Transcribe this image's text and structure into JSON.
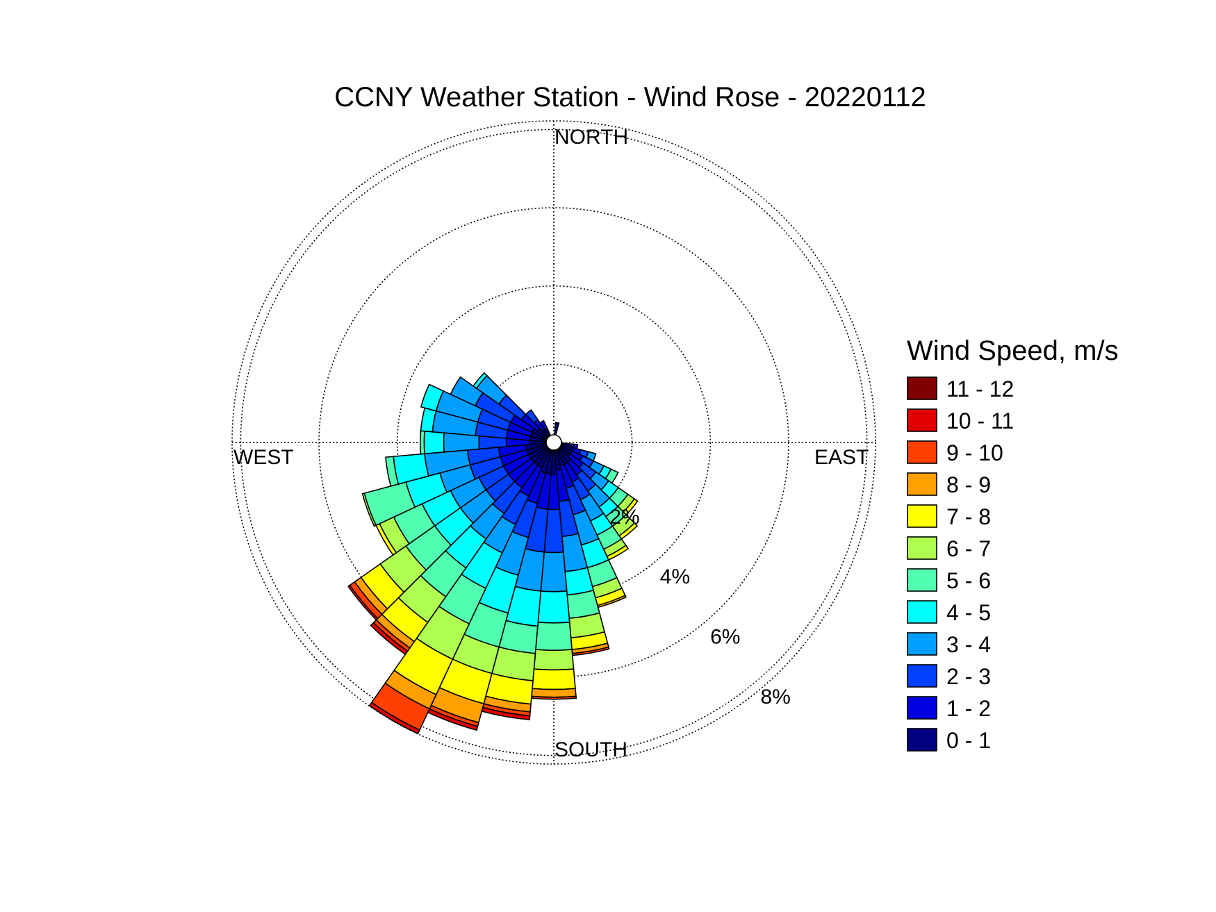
{
  "chart_data": {
    "type": "wind-rose",
    "title": "CCNY Weather Station - Wind Rose - 20220112",
    "direction_labels": {
      "north": "NORTH",
      "east": "EAST",
      "south": "SOUTH",
      "west": "WEST"
    },
    "ring_labels": [
      "2%",
      "4%",
      "6%",
      "8%"
    ],
    "ring_values": [
      2,
      4,
      6,
      8
    ],
    "ring_max": 8.22,
    "grid": true,
    "direction_bin_width_deg": 10,
    "legend": {
      "title": "Wind Speed, m/s",
      "placement": "right",
      "bins": [
        {
          "label": "11 - 12",
          "color": "#800000"
        },
        {
          "label": "10 - 11",
          "color": "#e00000"
        },
        {
          "label": "9 - 10",
          "color": "#ff4000"
        },
        {
          "label": "8 - 9",
          "color": "#ff9f00"
        },
        {
          "label": "7 - 8",
          "color": "#ffff00"
        },
        {
          "label": "6 - 7",
          "color": "#afff50"
        },
        {
          "label": "5 - 6",
          "color": "#50ffaf"
        },
        {
          "label": "4 - 5",
          "color": "#00ffff"
        },
        {
          "label": "3 - 4",
          "color": "#009fff"
        },
        {
          "label": "2 - 3",
          "color": "#0040ff"
        },
        {
          "label": "1 - 2",
          "color": "#0000e0"
        },
        {
          "label": "0 - 1",
          "color": "#000080"
        }
      ]
    },
    "speed_bins_low_to_high": [
      "0 - 1",
      "1 - 2",
      "2 - 3",
      "3 - 4",
      "4 - 5",
      "5 - 6",
      "6 - 7",
      "7 - 8",
      "8 - 9",
      "9 - 10",
      "10 - 11",
      "11 - 12"
    ],
    "series_note": "cumulative frequency (%) at the outer edge of each speed bin, low to high",
    "directions": [
      {
        "dir": 10,
        "cum": [
          0.3
        ]
      },
      {
        "dir": 100,
        "cum": [
          0.3,
          0.4
        ]
      },
      {
        "dir": 110,
        "cum": [
          0.3,
          0.5,
          0.7,
          0.9
        ]
      },
      {
        "dir": 120,
        "cum": [
          0.3,
          0.6,
          0.9,
          1.2,
          1.4,
          1.6
        ]
      },
      {
        "dir": 130,
        "cum": [
          0.3,
          0.7,
          1.1,
          1.5,
          1.8,
          2.1,
          2.3,
          2.4
        ]
      },
      {
        "dir": 140,
        "cum": [
          0.4,
          0.8,
          1.3,
          1.8,
          2.1,
          2.4,
          2.7,
          2.8
        ]
      },
      {
        "dir": 150,
        "cum": [
          0.4,
          0.9,
          1.4,
          2.0,
          2.4,
          2.8,
          3.0,
          3.1
        ]
      },
      {
        "dir": 160,
        "cum": [
          0.4,
          1.0,
          1.7,
          2.5,
          3.1,
          3.6,
          3.9,
          4.1,
          4.15
        ]
      },
      {
        "dir": 170,
        "cum": [
          0.5,
          1.3,
          2.2,
          3.1,
          3.7,
          4.3,
          4.8,
          5.1,
          5.2,
          5.25
        ]
      },
      {
        "dir": 180,
        "cum": [
          0.6,
          1.5,
          2.6,
          3.6,
          4.4,
          5.1,
          5.6,
          6.1,
          6.3,
          6.35
        ]
      },
      {
        "dir": 190,
        "cum": [
          0.6,
          1.5,
          2.6,
          3.6,
          4.5,
          5.2,
          5.9,
          6.5,
          6.7,
          6.8,
          6.9
        ]
      },
      {
        "dir": 200,
        "cum": [
          0.6,
          1.4,
          2.3,
          3.3,
          4.3,
          5.2,
          5.9,
          6.7,
          7.2,
          7.3,
          7.4
        ]
      },
      {
        "dir": 210,
        "cum": [
          0.5,
          1.3,
          2.1,
          2.9,
          3.9,
          4.9,
          5.9,
          6.9,
          7.3,
          7.9,
          8.0
        ]
      },
      {
        "dir": 220,
        "cum": [
          0.5,
          1.2,
          2.0,
          2.8,
          3.7,
          4.6,
          5.4,
          6.0,
          6.2,
          6.3,
          6.4
        ]
      },
      {
        "dir": 230,
        "cum": [
          0.5,
          1.2,
          1.9,
          2.7,
          3.5,
          4.4,
          5.2,
          5.8,
          6.0,
          6.15,
          6.2
        ]
      },
      {
        "dir": 240,
        "cum": [
          0.5,
          1.2,
          1.9,
          2.7,
          3.5,
          4.3,
          4.7,
          4.8
        ]
      },
      {
        "dir": 250,
        "cum": [
          0.5,
          1.2,
          2.0,
          2.8,
          3.7,
          4.8,
          4.85
        ]
      },
      {
        "dir": 260,
        "cum": [
          0.5,
          1.2,
          2.0,
          3.1,
          3.9,
          4.1
        ]
      },
      {
        "dir": 270,
        "cum": [
          0.4,
          1.0,
          1.7,
          2.6,
          3.1,
          3.2
        ]
      },
      {
        "dir": 280,
        "cum": [
          0.4,
          1.0,
          1.8,
          2.9,
          3.2
        ]
      },
      {
        "dir": 290,
        "cum": [
          0.4,
          1.0,
          1.8,
          2.9,
          3.3
        ]
      },
      {
        "dir": 300,
        "cum": [
          0.4,
          1.0,
          2.0,
          2.7
        ]
      },
      {
        "dir": 310,
        "cum": [
          0.3,
          0.8,
          1.5,
          2.2,
          2.3
        ]
      },
      {
        "dir": 320,
        "cum": [
          0.2,
          0.5,
          0.8
        ]
      },
      {
        "dir": 330,
        "cum": [
          0.2,
          0.4
        ]
      }
    ]
  }
}
